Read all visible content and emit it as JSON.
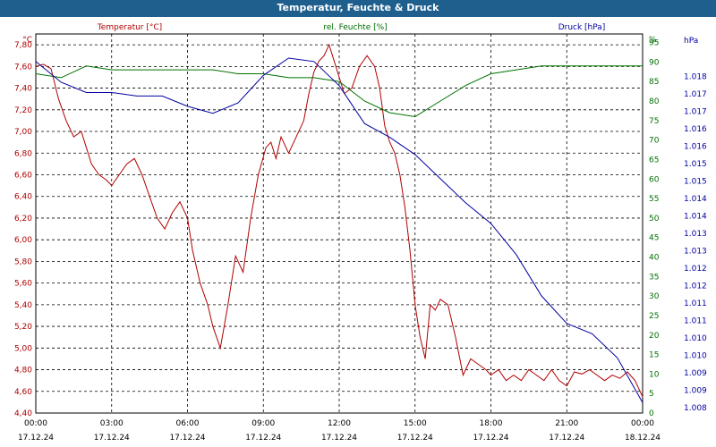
{
  "window": {
    "title": "Temperatur, Feuchte & Druck"
  },
  "chart_data": {
    "type": "line",
    "title": "Temperatur, Feuchte & Druck",
    "colors": {
      "temperature": "#b00000",
      "humidity": "#007000",
      "pressure": "#0000a0",
      "titlebar": "#1e5f8e"
    },
    "grid": true,
    "x_ticks": [
      {
        "h": 0,
        "time": "00:00",
        "date": "17.12.24"
      },
      {
        "h": 3,
        "time": "03:00",
        "date": "17.12.24"
      },
      {
        "h": 6,
        "time": "06:00",
        "date": "17.12.24"
      },
      {
        "h": 9,
        "time": "09:00",
        "date": "17.12.24"
      },
      {
        "h": 12,
        "time": "12:00",
        "date": "17.12.24"
      },
      {
        "h": 15,
        "time": "15:00",
        "date": "17.12.24"
      },
      {
        "h": 18,
        "time": "18:00",
        "date": "17.12.24"
      },
      {
        "h": 21,
        "time": "21:00",
        "date": "17.12.24"
      },
      {
        "h": 24,
        "time": "00:00",
        "date": "18.12.24"
      }
    ],
    "xlim": [
      0,
      24
    ],
    "axes": {
      "temperature": {
        "label": "Temperatur [°C]",
        "unit": "°C",
        "ylim": [
          4.4,
          7.9
        ],
        "ticks": [
          "4,40",
          "4,60",
          "4,80",
          "5,00",
          "5,20",
          "5,40",
          "5,60",
          "5,80",
          "6,00",
          "6,20",
          "6,40",
          "6,60",
          "6,80",
          "7,00",
          "7,20",
          "7,40",
          "7,60",
          "7,80"
        ]
      },
      "humidity": {
        "label": "rel. Feuchte [%]",
        "unit": "%",
        "ylim": [
          0,
          97.2
        ],
        "ticks": [
          "0",
          "5",
          "10",
          "15",
          "20",
          "25",
          "30",
          "35",
          "40",
          "45",
          "50",
          "55",
          "60",
          "65",
          "70",
          "75",
          "80",
          "85",
          "90",
          "95"
        ]
      },
      "pressure": {
        "label": "Druck [hPa]",
        "unit": "hPa",
        "ylim": [
          1008.0,
          1019.0
        ],
        "ticks": [
          "1.008",
          "1.009",
          "1.009",
          "1.010",
          "1.010",
          "1.011",
          "1.011",
          "1.012",
          "1.012",
          "1.013",
          "1.013",
          "1.014",
          "1.014",
          "1.015",
          "1.015",
          "1.016",
          "1.016",
          "1.017",
          "1.017",
          "1.018"
        ]
      }
    },
    "series": [
      {
        "name": "Temperatur [°C]",
        "axis": "temperature",
        "x": [
          0,
          0.3,
          0.6,
          0.9,
          1.2,
          1.5,
          1.8,
          2.0,
          2.2,
          2.5,
          2.8,
          3.0,
          3.3,
          3.6,
          3.9,
          4.2,
          4.5,
          4.8,
          5.1,
          5.4,
          5.7,
          6.0,
          6.2,
          6.5,
          6.8,
          7.0,
          7.3,
          7.6,
          7.9,
          8.2,
          8.5,
          8.8,
          9.1,
          9.3,
          9.5,
          9.7,
          10.0,
          10.3,
          10.6,
          10.8,
          11.0,
          11.2,
          11.4,
          11.6,
          11.8,
          12.0,
          12.2,
          12.5,
          12.8,
          13.1,
          13.4,
          13.6,
          13.8,
          14.0,
          14.2,
          14.4,
          14.6,
          14.8,
          15.0,
          15.2,
          15.4,
          15.6,
          15.8,
          16.0,
          16.3,
          16.6,
          16.9,
          17.2,
          17.5,
          17.8,
          18.0,
          18.3,
          18.6,
          18.9,
          19.2,
          19.5,
          19.8,
          20.1,
          20.4,
          20.7,
          21.0,
          21.3,
          21.6,
          21.9,
          22.2,
          22.5,
          22.8,
          23.1,
          23.4,
          23.7,
          24.0
        ],
        "values": [
          7.6,
          7.62,
          7.58,
          7.3,
          7.1,
          6.95,
          7.0,
          6.85,
          6.7,
          6.6,
          6.55,
          6.5,
          6.6,
          6.7,
          6.75,
          6.6,
          6.4,
          6.2,
          6.1,
          6.25,
          6.35,
          6.2,
          5.9,
          5.6,
          5.4,
          5.2,
          5.0,
          5.4,
          5.85,
          5.7,
          6.2,
          6.6,
          6.85,
          6.9,
          6.75,
          6.95,
          6.8,
          6.95,
          7.1,
          7.35,
          7.55,
          7.65,
          7.7,
          7.8,
          7.65,
          7.5,
          7.35,
          7.4,
          7.6,
          7.7,
          7.6,
          7.4,
          7.05,
          6.9,
          6.8,
          6.6,
          6.3,
          5.9,
          5.4,
          5.1,
          4.9,
          5.4,
          5.35,
          5.45,
          5.4,
          5.1,
          4.75,
          4.9,
          4.85,
          4.8,
          4.75,
          4.8,
          4.7,
          4.75,
          4.7,
          4.8,
          4.75,
          4.7,
          4.8,
          4.7,
          4.65,
          4.78,
          4.76,
          4.8,
          4.75,
          4.7,
          4.75,
          4.72,
          4.78,
          4.7,
          4.55
        ]
      },
      {
        "name": "rel. Feuchte [%]",
        "axis": "humidity",
        "x": [
          0,
          1,
          2,
          3,
          4,
          5,
          6,
          7,
          8,
          9,
          10,
          11,
          12,
          13,
          14,
          15,
          16,
          17,
          18,
          19,
          20,
          21,
          22,
          23,
          24
        ],
        "values": [
          87,
          86,
          89,
          88,
          88,
          88,
          88,
          88,
          87,
          87,
          86,
          86,
          85,
          80,
          77,
          76,
          80,
          84,
          87,
          88,
          89,
          89,
          89,
          89,
          89
        ]
      },
      {
        "name": "Druck [hPa]",
        "axis": "pressure",
        "x": [
          0,
          1,
          2,
          3,
          4,
          5,
          6,
          7,
          8,
          9,
          10,
          11,
          12,
          13,
          14,
          15,
          16,
          17,
          18,
          19,
          20,
          21,
          22,
          23,
          24
        ],
        "values": [
          1018.2,
          1017.6,
          1017.3,
          1017.3,
          1017.2,
          1017.2,
          1016.9,
          1016.7,
          1017.0,
          1017.8,
          1018.3,
          1018.2,
          1017.5,
          1016.4,
          1016.0,
          1015.5,
          1014.8,
          1014.1,
          1013.5,
          1012.6,
          1011.4,
          1010.6,
          1010.3,
          1009.6,
          1008.3
        ]
      }
    ]
  }
}
